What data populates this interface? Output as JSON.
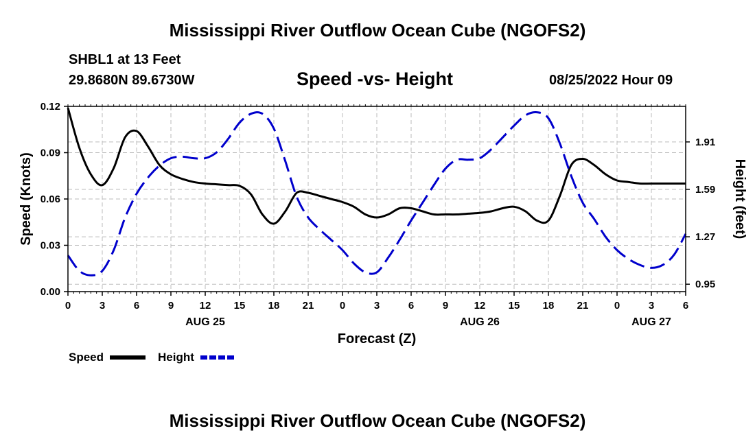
{
  "header": {
    "title": "Mississippi River Outflow Ocean Cube (NGOFS2)",
    "station": "SHBL1 at 13 Feet",
    "coords": "29.8680N  89.6730W",
    "subtitle": "Speed -vs- Height",
    "datetime": "08/25/2022 Hour 09",
    "footer_title": "Mississippi River Outflow Ocean Cube (NGOFS2)"
  },
  "chart_data": {
    "type": "line",
    "title": "Speed -vs- Height",
    "xlabel": "Forecast (Z)",
    "ylabel": "Speed (Knots)",
    "y2label": "Height (feet)",
    "xlim": [
      0,
      54
    ],
    "ylim": [
      0,
      0.12
    ],
    "y2lim": [
      0.9,
      2.15
    ],
    "grid": true,
    "x_ticks": [
      {
        "x": 0,
        "label": "0"
      },
      {
        "x": 3,
        "label": "3"
      },
      {
        "x": 6,
        "label": "6"
      },
      {
        "x": 9,
        "label": "9"
      },
      {
        "x": 12,
        "label": "12"
      },
      {
        "x": 15,
        "label": "15"
      },
      {
        "x": 18,
        "label": "18"
      },
      {
        "x": 21,
        "label": "21"
      },
      {
        "x": 24,
        "label": "0"
      },
      {
        "x": 27,
        "label": "3"
      },
      {
        "x": 30,
        "label": "6"
      },
      {
        "x": 33,
        "label": "9"
      },
      {
        "x": 36,
        "label": "12"
      },
      {
        "x": 39,
        "label": "15"
      },
      {
        "x": 42,
        "label": "18"
      },
      {
        "x": 45,
        "label": "21"
      },
      {
        "x": 48,
        "label": "0"
      },
      {
        "x": 51,
        "label": "3"
      },
      {
        "x": 54,
        "label": "6"
      }
    ],
    "date_labels": [
      {
        "x": 12,
        "label": "AUG 25"
      },
      {
        "x": 36,
        "label": "AUG 26"
      },
      {
        "x": 51,
        "label": "AUG 27"
      }
    ],
    "y_ticks": [
      {
        "y": 0.0,
        "label": "0.00"
      },
      {
        "y": 0.03,
        "label": "0.03"
      },
      {
        "y": 0.06,
        "label": "0.06"
      },
      {
        "y": 0.09,
        "label": "0.09"
      },
      {
        "y": 0.12,
        "label": "0.12"
      }
    ],
    "y2_ticks": [
      {
        "y": 0.95,
        "label": "0.95"
      },
      {
        "y": 1.27,
        "label": "1.27"
      },
      {
        "y": 1.59,
        "label": "1.59"
      },
      {
        "y": 1.91,
        "label": "1.91"
      }
    ],
    "series": [
      {
        "name": "Speed",
        "axis": "left",
        "color": "#000000",
        "dash": "solid",
        "x": [
          0,
          1,
          2,
          3,
          4,
          5,
          6,
          7,
          8,
          9,
          10,
          11,
          12,
          13,
          14,
          15,
          16,
          17,
          18,
          19,
          20,
          21,
          22,
          23,
          24,
          25,
          26,
          27,
          28,
          29,
          30,
          31,
          32,
          33,
          34,
          35,
          36,
          37,
          38,
          39,
          40,
          41,
          42,
          43,
          44,
          45,
          46,
          47,
          48,
          49,
          50,
          51,
          52,
          53,
          54
        ],
        "values": [
          0.119,
          0.093,
          0.076,
          0.069,
          0.08,
          0.1,
          0.104,
          0.094,
          0.082,
          0.076,
          0.073,
          0.071,
          0.07,
          0.0695,
          0.069,
          0.0685,
          0.063,
          0.05,
          0.044,
          0.052,
          0.064,
          0.064,
          0.062,
          0.06,
          0.058,
          0.055,
          0.05,
          0.048,
          0.05,
          0.054,
          0.054,
          0.052,
          0.05,
          0.05,
          0.05,
          0.0505,
          0.051,
          0.052,
          0.054,
          0.055,
          0.052,
          0.046,
          0.046,
          0.062,
          0.082,
          0.086,
          0.082,
          0.076,
          0.072,
          0.071,
          0.07,
          0.07,
          0.07,
          0.07,
          0.07
        ]
      },
      {
        "name": "Height",
        "axis": "right",
        "color": "#0000cc",
        "dash": "dashed",
        "x": [
          0,
          1,
          2,
          3,
          4,
          5,
          6,
          7,
          8,
          9,
          10,
          11,
          12,
          13,
          14,
          15,
          16,
          17,
          18,
          19,
          20,
          21,
          22,
          23,
          24,
          25,
          26,
          27,
          28,
          29,
          30,
          31,
          32,
          33,
          34,
          35,
          36,
          37,
          38,
          39,
          40,
          41,
          42,
          43,
          44,
          45,
          46,
          47,
          48,
          49,
          50,
          51,
          52,
          53,
          54
        ],
        "values": [
          1.145,
          1.04,
          1.01,
          1.04,
          1.18,
          1.4,
          1.56,
          1.67,
          1.75,
          1.8,
          1.81,
          1.8,
          1.8,
          1.84,
          1.93,
          2.04,
          2.1,
          2.1,
          2.0,
          1.78,
          1.54,
          1.4,
          1.32,
          1.25,
          1.18,
          1.09,
          1.03,
          1.03,
          1.13,
          1.25,
          1.38,
          1.5,
          1.62,
          1.73,
          1.79,
          1.79,
          1.8,
          1.86,
          1.94,
          2.02,
          2.09,
          2.11,
          2.07,
          1.9,
          1.68,
          1.5,
          1.39,
          1.27,
          1.18,
          1.12,
          1.08,
          1.06,
          1.08,
          1.15,
          1.29
        ]
      }
    ],
    "legend": {
      "placement": "bottom-left",
      "entries": [
        {
          "name": "Speed",
          "color": "#000000",
          "dash": "solid"
        },
        {
          "name": "Height",
          "color": "#0000cc",
          "dash": "dashed"
        }
      ]
    }
  }
}
